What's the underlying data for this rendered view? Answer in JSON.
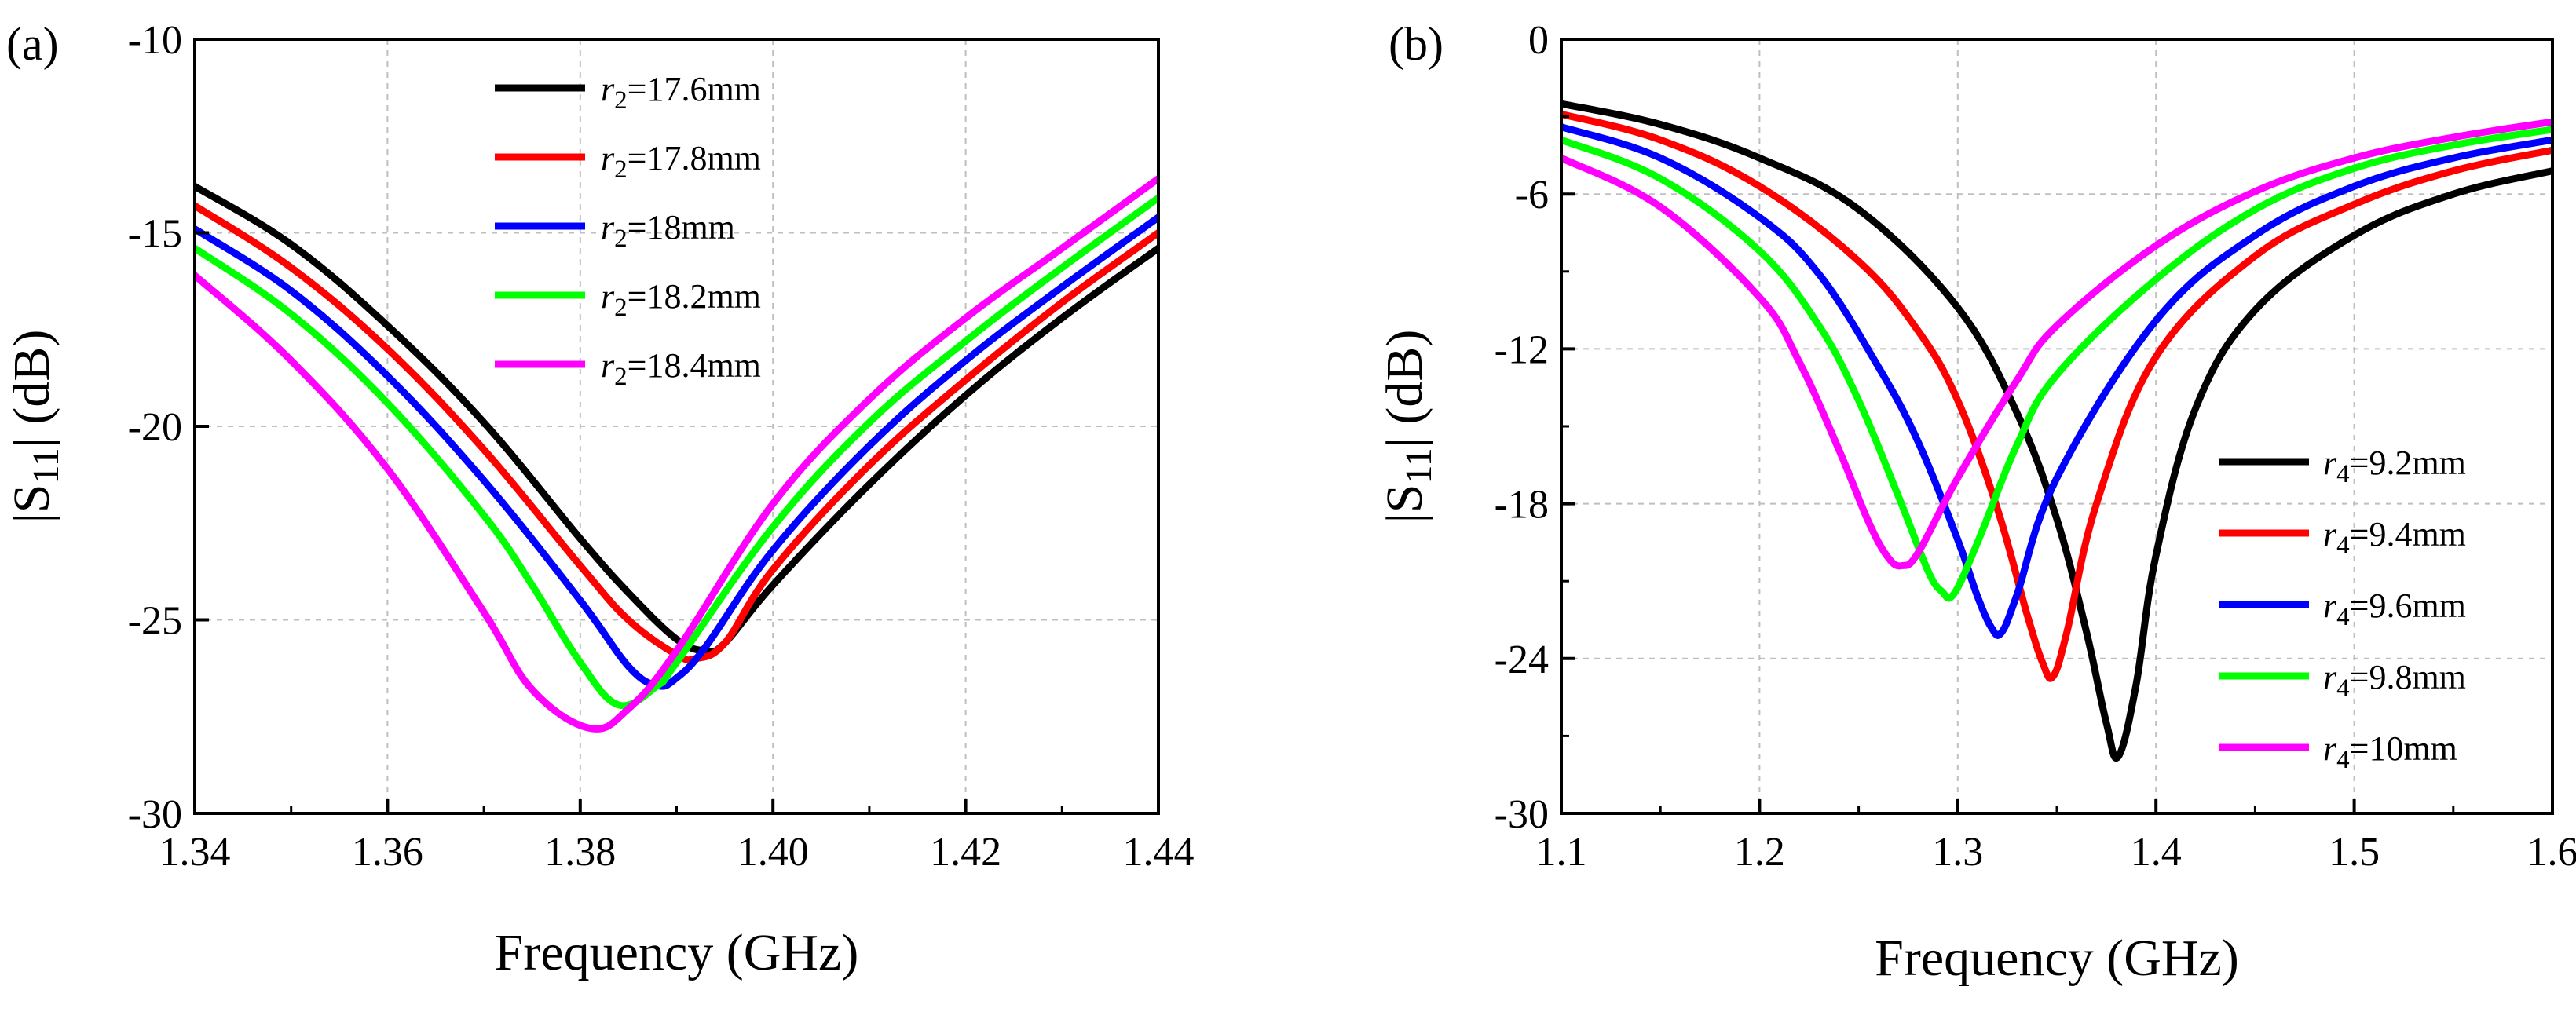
{
  "chart_data": [
    {
      "panel_label": "(a)",
      "type": "line",
      "xlabel": "Frequency (GHz)",
      "ylabel": "|S11| (dB)",
      "ylabel_main": "|S",
      "ylabel_sub": "11",
      "ylabel_tail": "| (dB)",
      "xlim": [
        1.34,
        1.44
      ],
      "ylim": [
        -30,
        -10
      ],
      "xticks": [
        1.34,
        1.36,
        1.38,
        1.4,
        1.42,
        1.44
      ],
      "xtick_labels": [
        "1.34",
        "1.36",
        "1.38",
        "1.40",
        "1.42",
        "1.44"
      ],
      "yticks": [
        -10,
        -15,
        -20,
        -25,
        -30
      ],
      "ytick_labels": [
        "-10",
        "-15",
        "-20",
        "-25",
        "-30"
      ],
      "grid": true,
      "legend_position": "top-center",
      "series": [
        {
          "name": "r2=17.6mm",
          "legend_var": "r",
          "legend_sub": "2",
          "legend_value": "=17.6mm",
          "color": "#000000",
          "x": [
            1.34,
            1.35,
            1.36,
            1.37,
            1.38,
            1.385,
            1.39,
            1.393,
            1.395,
            1.4,
            1.41,
            1.42,
            1.43,
            1.44
          ],
          "y": [
            -13.8,
            -15.3,
            -17.4,
            -19.9,
            -22.9,
            -24.3,
            -25.5,
            -25.8,
            -25.6,
            -24.1,
            -21.5,
            -19.2,
            -17.2,
            -15.4
          ]
        },
        {
          "name": "r2=17.8mm",
          "legend_var": "r",
          "legend_sub": "2",
          "legend_value": "=17.8mm",
          "color": "#ff0000",
          "x": [
            1.34,
            1.35,
            1.36,
            1.37,
            1.38,
            1.385,
            1.39,
            1.392,
            1.395,
            1.4,
            1.41,
            1.42,
            1.43,
            1.44
          ],
          "y": [
            -14.3,
            -15.9,
            -18.0,
            -20.6,
            -23.6,
            -25.0,
            -25.9,
            -26.0,
            -25.6,
            -23.7,
            -21.0,
            -18.8,
            -16.8,
            -15.0
          ]
        },
        {
          "name": "r2=18mm",
          "legend_var": "r",
          "legend_sub": "2",
          "legend_value": "=18mm",
          "color": "#0000ff",
          "x": [
            1.34,
            1.35,
            1.36,
            1.37,
            1.38,
            1.385,
            1.388,
            1.39,
            1.393,
            1.4,
            1.41,
            1.42,
            1.43,
            1.44
          ],
          "y": [
            -14.9,
            -16.5,
            -18.7,
            -21.4,
            -24.5,
            -26.2,
            -26.7,
            -26.5,
            -25.7,
            -23.2,
            -20.5,
            -18.3,
            -16.4,
            -14.6
          ]
        },
        {
          "name": "r2=18.2mm",
          "legend_var": "r",
          "legend_sub": "2",
          "legend_value": "=18.2mm",
          "color": "#00ff00",
          "x": [
            1.34,
            1.35,
            1.36,
            1.37,
            1.375,
            1.38,
            1.384,
            1.388,
            1.39,
            1.4,
            1.41,
            1.42,
            1.43,
            1.44
          ],
          "y": [
            -15.4,
            -17.1,
            -19.4,
            -22.3,
            -24.1,
            -26.1,
            -27.2,
            -26.7,
            -26.1,
            -22.6,
            -19.9,
            -17.8,
            -15.9,
            -14.1
          ]
        },
        {
          "name": "r2=18.4mm",
          "legend_var": "r",
          "legend_sub": "2",
          "legend_value": "=18.4mm",
          "color": "#ff00ff",
          "x": [
            1.34,
            1.35,
            1.36,
            1.37,
            1.375,
            1.381,
            1.385,
            1.39,
            1.4,
            1.41,
            1.42,
            1.43,
            1.44
          ],
          "y": [
            -16.1,
            -18.3,
            -21.1,
            -24.8,
            -26.8,
            -27.8,
            -27.3,
            -25.8,
            -22.0,
            -19.3,
            -17.2,
            -15.4,
            -13.6
          ]
        }
      ]
    },
    {
      "panel_label": "(b)",
      "type": "line",
      "xlabel": "Frequency (GHz)",
      "ylabel": "|S11| (dB)",
      "ylabel_main": "|S",
      "ylabel_sub": "11",
      "ylabel_tail": "| (dB)",
      "xlim": [
        1.1,
        1.6
      ],
      "ylim": [
        -30,
        0
      ],
      "xticks": [
        1.1,
        1.2,
        1.3,
        1.4,
        1.5,
        1.6
      ],
      "xtick_labels": [
        "1.1",
        "1.2",
        "1.3",
        "1.4",
        "1.5",
        "1.6"
      ],
      "yticks": [
        0,
        -6,
        -12,
        -18,
        -24,
        -30
      ],
      "ytick_labels": [
        "0",
        "-6",
        "-12",
        "-18",
        "-24",
        "-30"
      ],
      "grid": true,
      "legend_position": "bottom-right",
      "series": [
        {
          "name": "r4=9.2mm",
          "legend_var": "r",
          "legend_sub": "4",
          "legend_value": "=9.2mm",
          "color": "#000000",
          "x": [
            1.1,
            1.15,
            1.2,
            1.25,
            1.3,
            1.33,
            1.35,
            1.365,
            1.375,
            1.381,
            1.39,
            1.4,
            1.42,
            1.45,
            1.5,
            1.55,
            1.6
          ],
          "y": [
            -2.5,
            -3.3,
            -4.6,
            -6.6,
            -10.4,
            -14.5,
            -18.6,
            -23.0,
            -26.5,
            -27.8,
            -25.0,
            -20.0,
            -14.3,
            -10.5,
            -7.6,
            -6.0,
            -5.1
          ]
        },
        {
          "name": "r4=9.4mm",
          "legend_var": "r",
          "legend_sub": "4",
          "legend_value": "=9.4mm",
          "color": "#ff0000",
          "x": [
            1.1,
            1.15,
            1.2,
            1.25,
            1.28,
            1.3,
            1.32,
            1.335,
            1.343,
            1.348,
            1.355,
            1.37,
            1.4,
            1.45,
            1.5,
            1.55,
            1.6
          ],
          "y": [
            -2.9,
            -3.9,
            -5.7,
            -8.6,
            -11.3,
            -14.0,
            -18.2,
            -22.3,
            -24.2,
            -24.7,
            -23.0,
            -18.0,
            -12.3,
            -8.4,
            -6.4,
            -5.1,
            -4.3
          ]
        },
        {
          "name": "r4=9.6mm",
          "legend_var": "r",
          "legend_sub": "4",
          "legend_value": "=9.6mm",
          "color": "#0000ff",
          "x": [
            1.1,
            1.15,
            1.2,
            1.23,
            1.26,
            1.28,
            1.3,
            1.31,
            1.317,
            1.322,
            1.33,
            1.35,
            1.4,
            1.45,
            1.5,
            1.55,
            1.6
          ],
          "y": [
            -3.4,
            -4.6,
            -6.9,
            -9.1,
            -12.7,
            -15.6,
            -19.4,
            -21.6,
            -22.8,
            -23.0,
            -21.5,
            -17.0,
            -10.9,
            -7.6,
            -5.7,
            -4.6,
            -3.9
          ]
        },
        {
          "name": "r4=9.8mm",
          "legend_var": "r",
          "legend_sub": "4",
          "legend_value": "=9.8mm",
          "color": "#00ff00",
          "x": [
            1.1,
            1.15,
            1.2,
            1.23,
            1.25,
            1.27,
            1.285,
            1.292,
            1.298,
            1.31,
            1.33,
            1.35,
            1.4,
            1.45,
            1.5,
            1.55,
            1.6
          ],
          "y": [
            -3.9,
            -5.4,
            -8.2,
            -11.1,
            -14.0,
            -17.7,
            -20.6,
            -21.4,
            -21.5,
            -19.5,
            -15.7,
            -13.0,
            -9.3,
            -6.6,
            -5.0,
            -4.1,
            -3.5
          ]
        },
        {
          "name": "r4=10mm",
          "legend_var": "r",
          "legend_sub": "4",
          "legend_value": "=10mm",
          "color": "#ff00ff",
          "x": [
            1.1,
            1.15,
            1.2,
            1.22,
            1.24,
            1.255,
            1.265,
            1.272,
            1.28,
            1.3,
            1.33,
            1.35,
            1.4,
            1.45,
            1.5,
            1.55,
            1.6
          ],
          "y": [
            -4.6,
            -6.5,
            -10.0,
            -12.5,
            -15.9,
            -18.7,
            -20.1,
            -20.4,
            -19.9,
            -17.0,
            -13.2,
            -11.1,
            -8.0,
            -5.9,
            -4.6,
            -3.8,
            -3.2
          ]
        }
      ]
    }
  ]
}
